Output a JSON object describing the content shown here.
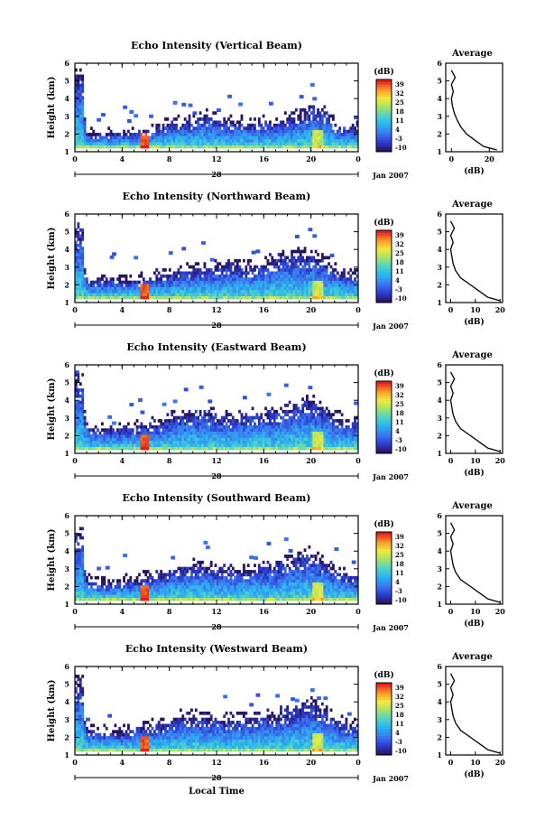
{
  "figure": {
    "xaxis_day_label": "28",
    "xaxis_month_label": "Jan 2007",
    "xaxis_title": "Local Time",
    "ylabel": "Height (km)",
    "colorbar_unit": "(dB)",
    "avg_title": "Average",
    "avg_xlabel": "(dB)"
  },
  "chart_data": [
    {
      "type": "heatmap",
      "title": "Echo Intensity (Vertical Beam)",
      "xlabel": "",
      "ylabel": "Height (km)",
      "x_ticks": [
        "0",
        "4",
        "8",
        "12",
        "16",
        "20",
        "0"
      ],
      "xlim": [
        0,
        24
      ],
      "y_ticks": [
        "1",
        "2",
        "3",
        "4",
        "5",
        "6"
      ],
      "ylim": [
        1,
        6
      ],
      "colorbar": {
        "ticks": [
          "-10",
          "-3",
          "4",
          "11",
          "18",
          "25",
          "32",
          "39"
        ],
        "range": [
          -10,
          39
        ]
      },
      "echo_profile": {
        "base_height_km": 1.2,
        "top_height_km": [
          5.2,
          1.9,
          1.9,
          1.9,
          2.0,
          2.0,
          2.1,
          2.3,
          2.5,
          2.6,
          2.7,
          2.9,
          2.7,
          2.6,
          2.6,
          2.5,
          2.6,
          2.5,
          2.8,
          3.0,
          3.3,
          3.2,
          2.4,
          2.3
        ]
      },
      "average": {
        "title": "Average",
        "xlabel": "(dB)",
        "x_ticks": [
          "0",
          "20"
        ],
        "xlim": [
          -3,
          27
        ],
        "y": [
          1.1,
          1.3,
          1.6,
          2.0,
          2.4,
          2.8,
          3.2,
          3.6,
          4.0,
          4.4,
          4.8,
          5.2,
          5.6
        ],
        "x": [
          24,
          17,
          13,
          8,
          5,
          3,
          1.5,
          0.5,
          0,
          1,
          0,
          2,
          0
        ]
      }
    },
    {
      "type": "heatmap",
      "title": "Echo Intensity (Northward Beam)",
      "xlabel": "",
      "ylabel": "Height (km)",
      "x_ticks": [
        "0",
        "4",
        "8",
        "12",
        "16",
        "20",
        "0"
      ],
      "xlim": [
        0,
        24
      ],
      "y_ticks": [
        "1",
        "2",
        "3",
        "4",
        "5",
        "6"
      ],
      "ylim": [
        1,
        6
      ],
      "colorbar": {
        "ticks": [
          "-10",
          "-3",
          "4",
          "11",
          "18",
          "25",
          "32",
          "39"
        ],
        "range": [
          -10,
          39
        ]
      },
      "echo_profile": {
        "base_height_km": 1.2,
        "top_height_km": [
          5.1,
          2.1,
          2.2,
          2.2,
          2.1,
          2.1,
          2.3,
          2.4,
          2.5,
          2.7,
          2.8,
          2.8,
          3.0,
          3.1,
          2.9,
          2.9,
          3.1,
          3.4,
          3.5,
          3.6,
          3.6,
          3.3,
          2.8,
          2.5
        ]
      },
      "average": {
        "title": "Average",
        "xlabel": "(dB)",
        "x_ticks": [
          "0",
          "10",
          "20"
        ],
        "xlim": [
          -2,
          21
        ],
        "y": [
          1.1,
          1.3,
          1.6,
          2.0,
          2.4,
          2.8,
          3.2,
          3.6,
          4.0,
          4.4,
          4.8,
          5.2,
          5.6
        ],
        "x": [
          20,
          15,
          12,
          8,
          4,
          2,
          1,
          0.5,
          0,
          1,
          0,
          1.5,
          0
        ]
      }
    },
    {
      "type": "heatmap",
      "title": "Echo Intensity (Eastward Beam)",
      "xlabel": "",
      "ylabel": "Height (km)",
      "x_ticks": [
        "0",
        "4",
        "8",
        "12",
        "16",
        "20",
        "0"
      ],
      "xlim": [
        0,
        24
      ],
      "y_ticks": [
        "1",
        "2",
        "3",
        "4",
        "5",
        "6"
      ],
      "ylim": [
        1,
        6
      ],
      "colorbar": {
        "ticks": [
          "-10",
          "-3",
          "4",
          "11",
          "18",
          "25",
          "32",
          "39"
        ],
        "range": [
          -10,
          39
        ]
      },
      "echo_profile": {
        "base_height_km": 1.2,
        "top_height_km": [
          5.0,
          2.4,
          2.3,
          2.3,
          2.3,
          2.4,
          2.5,
          2.6,
          2.9,
          3.1,
          3.2,
          3.2,
          3.0,
          2.9,
          3.0,
          3.1,
          3.1,
          3.3,
          3.5,
          3.7,
          3.8,
          3.5,
          3.0,
          2.7
        ]
      },
      "average": {
        "title": "Average",
        "xlabel": "(dB)",
        "x_ticks": [
          "0",
          "10",
          "20"
        ],
        "xlim": [
          -2,
          21
        ],
        "y": [
          1.1,
          1.3,
          1.6,
          2.0,
          2.4,
          2.8,
          3.2,
          3.6,
          4.0,
          4.4,
          4.8,
          5.2,
          5.6
        ],
        "x": [
          20,
          15,
          12,
          8,
          4,
          2,
          1,
          0.5,
          0,
          1,
          0,
          1.5,
          0
        ]
      }
    },
    {
      "type": "heatmap",
      "title": "Echo Intensity (Southward Beam)",
      "xlabel": "",
      "ylabel": "Height (km)",
      "x_ticks": [
        "0",
        "4",
        "8",
        "12",
        "16",
        "20",
        "0"
      ],
      "xlim": [
        0,
        24
      ],
      "y_ticks": [
        "1",
        "2",
        "3",
        "4",
        "5",
        "6"
      ],
      "ylim": [
        1,
        6
      ],
      "colorbar": {
        "ticks": [
          "-10",
          "-3",
          "4",
          "11",
          "18",
          "25",
          "32",
          "39"
        ],
        "range": [
          -10,
          39
        ]
      },
      "echo_profile": {
        "base_height_km": 1.2,
        "top_height_km": [
          4.9,
          2.2,
          2.1,
          2.1,
          2.2,
          2.3,
          2.4,
          2.6,
          2.8,
          3.0,
          3.1,
          3.0,
          2.9,
          2.9,
          2.8,
          2.9,
          3.0,
          3.1,
          3.3,
          3.6,
          3.8,
          3.3,
          2.8,
          2.5
        ]
      },
      "average": {
        "title": "Average",
        "xlabel": "(dB)",
        "x_ticks": [
          "0",
          "10",
          "20"
        ],
        "xlim": [
          -2,
          21
        ],
        "y": [
          1.1,
          1.3,
          1.6,
          2.0,
          2.4,
          2.8,
          3.2,
          3.6,
          4.0,
          4.4,
          4.8,
          5.2,
          5.6
        ],
        "x": [
          20,
          15,
          12,
          8,
          4,
          2,
          1,
          0.5,
          0,
          1,
          0,
          1.5,
          0
        ]
      }
    },
    {
      "type": "heatmap",
      "title": "Echo Intensity (Westward Beam)",
      "xlabel": "Local Time",
      "ylabel": "Height (km)",
      "x_ticks": [
        "0",
        "4",
        "8",
        "12",
        "16",
        "20",
        "0"
      ],
      "xlim": [
        0,
        24
      ],
      "y_ticks": [
        "1",
        "2",
        "3",
        "4",
        "5",
        "6"
      ],
      "ylim": [
        1,
        6
      ],
      "colorbar": {
        "ticks": [
          "-10",
          "-3",
          "4",
          "11",
          "18",
          "25",
          "32",
          "39"
        ],
        "range": [
          -10,
          39
        ]
      },
      "echo_profile": {
        "base_height_km": 1.2,
        "top_height_km": [
          5.0,
          2.3,
          2.2,
          2.2,
          2.2,
          2.4,
          2.5,
          2.6,
          2.8,
          3.1,
          3.1,
          3.0,
          3.0,
          2.9,
          2.9,
          3.0,
          3.1,
          3.2,
          3.3,
          3.6,
          3.8,
          3.4,
          2.9,
          2.6
        ]
      },
      "average": {
        "title": "Average",
        "xlabel": "(dB)",
        "x_ticks": [
          "0",
          "10",
          "20"
        ],
        "xlim": [
          -2,
          21
        ],
        "y": [
          1.1,
          1.3,
          1.6,
          2.0,
          2.4,
          2.8,
          3.2,
          3.6,
          4.0,
          4.4,
          4.8,
          5.2,
          5.6
        ],
        "x": [
          20,
          15,
          12,
          8,
          4,
          2,
          1,
          0.5,
          0,
          1,
          0,
          1.5,
          0
        ]
      }
    }
  ]
}
